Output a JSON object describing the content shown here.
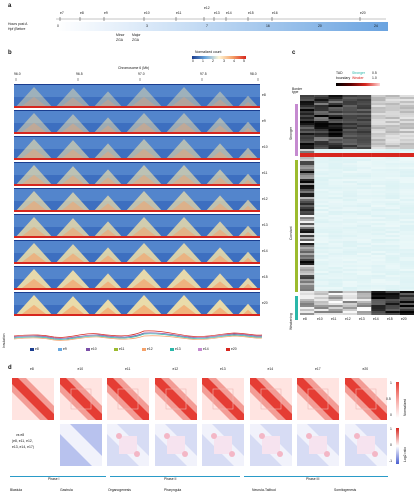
{
  "panel_a": {
    "label": "a",
    "row_labels": [
      "Hours post A",
      "Hpf (Before"
    ],
    "timepoints": [
      "e7",
      "e8",
      "e9",
      "e10",
      "e11",
      "e12",
      "e13",
      "e14",
      "e15",
      "e16",
      "e20"
    ],
    "stage_marks": [
      "0",
      "3",
      "7",
      "16",
      "20",
      "24"
    ],
    "sub_text": [
      "Minor",
      "Major",
      "ZGA",
      "ZGA"
    ],
    "gradient_colors": [
      "#ffffff",
      "#6aa3e0"
    ]
  },
  "panel_b": {
    "label": "b",
    "chrom_title": "Chromosome 6 (Mb)",
    "positions": [
      "96.0",
      "96.5",
      "97.0",
      "97.5",
      "98.0"
    ],
    "row_tags": [
      "e8",
      "e9",
      "e10",
      "e11",
      "e12",
      "e13",
      "e14",
      "e15",
      "e20"
    ],
    "colorbar_title": "Normalized count",
    "colorbar_ticks": [
      "0",
      "1",
      "2",
      "3",
      "4",
      "5"
    ],
    "track_label": "Insulation",
    "legend": [
      "e8",
      "e9",
      "e10",
      "e11",
      "e12",
      "e13",
      "e14",
      "e20"
    ]
  },
  "panel_c": {
    "label": "c",
    "legend_lines": [
      "TAD",
      "boundary",
      "Stronger",
      "Weaker"
    ],
    "legend_values": [
      "0.5",
      "1.0"
    ],
    "border_type": "Border type",
    "groups": [
      "Stronger",
      "Constant",
      "Weakening"
    ],
    "col_labels": [
      "e8",
      "e10",
      "e11",
      "e12",
      "e13",
      "e14",
      "e15",
      "e20"
    ],
    "group_colors": [
      "#c58ad0",
      "#9cbb2e",
      "#2ab7a9"
    ]
  },
  "panel_d": {
    "label": "d",
    "stages": [
      "e8",
      "e10",
      "e11",
      "e12",
      "e13",
      "e14",
      "e17",
      "e20"
    ],
    "bottom_left_text": [
      "vs e8",
      "(e8, e11, e12,",
      "e13, e14, e17)"
    ],
    "colorbar1_title": "Normalized",
    "colorbar1_ticks": [
      "0",
      "0.5",
      "1"
    ],
    "colorbar2_title": "Log2 ratio",
    "colorbar2_ticks": [
      "-1",
      "0",
      "1"
    ],
    "phase_labels": [
      "Phase I",
      "Phase II",
      "Phase III"
    ],
    "category_labels": [
      "Blastula",
      "Gastrula",
      "Organogenesis",
      "Pharyngula",
      "Neurula-Tailbud",
      "Somitogenesis"
    ]
  }
}
